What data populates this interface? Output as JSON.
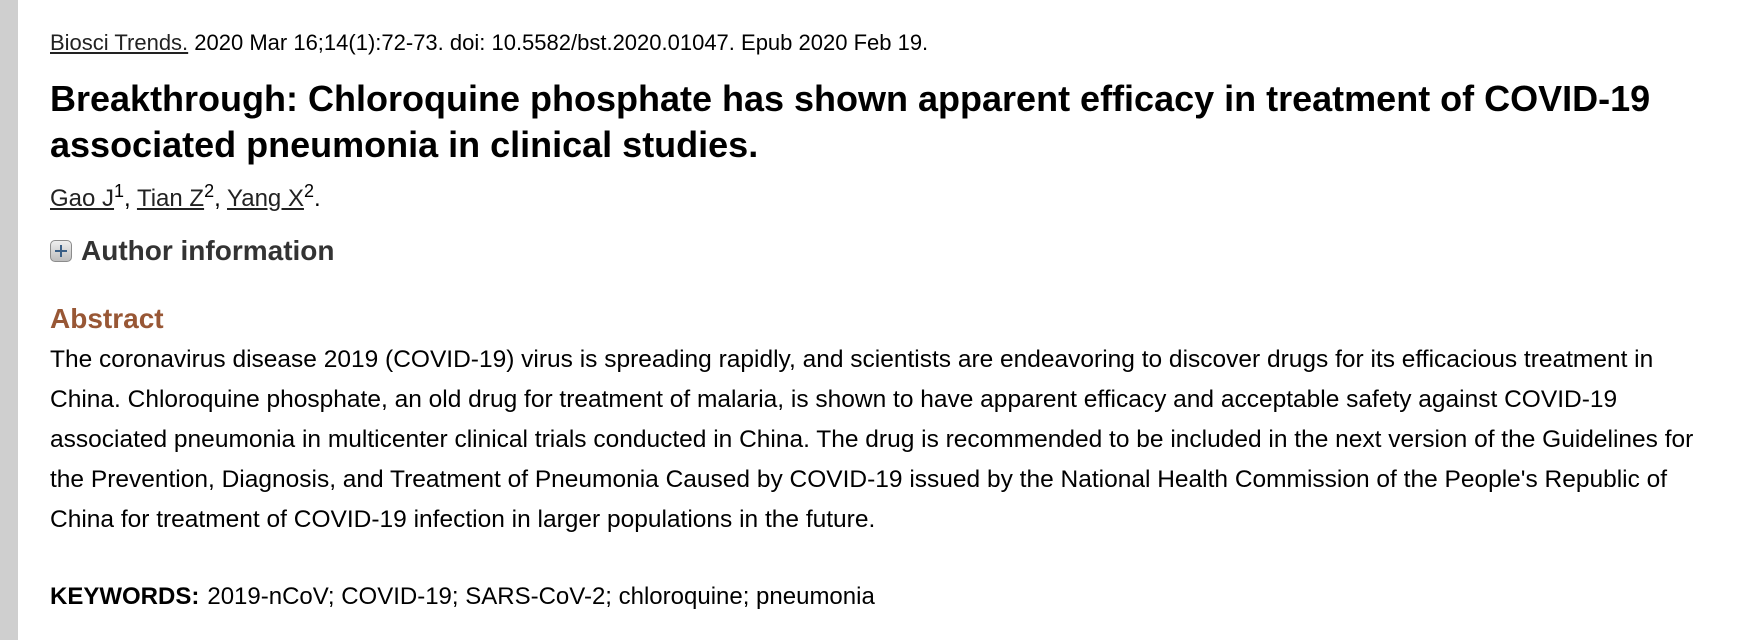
{
  "citation": {
    "journal": "Biosci Trends.",
    "details": " 2020 Mar 16;14(1):72-73. doi: 10.5582/bst.2020.01047. Epub 2020 Feb 19."
  },
  "title": "Breakthrough: Chloroquine phosphate has shown apparent efficacy in treatment of COVID-19 associated pneumonia in clinical studies.",
  "authors": [
    {
      "name": "Gao J",
      "affiliation": "1"
    },
    {
      "name": "Tian Z",
      "affiliation": "2"
    },
    {
      "name": "Yang X",
      "affiliation": "2"
    }
  ],
  "author_info": {
    "icon": "plus-expand-icon",
    "label": "Author information"
  },
  "abstract": {
    "heading": "Abstract",
    "text": "The coronavirus disease 2019 (COVID-19) virus is spreading rapidly, and scientists are endeavoring to discover drugs for its efficacious treatment in China. Chloroquine phosphate, an old drug for treatment of malaria, is shown to have apparent efficacy and acceptable safety against COVID-19 associated pneumonia in multicenter clinical trials conducted in China. The drug is recommended to be included in the next version of the Guidelines for the Prevention, Diagnosis, and Treatment of Pneumonia Caused by COVID-19 issued by the National Health Commission of the People's Republic of China for treatment of COVID-19 infection in larger populations in the future."
  },
  "keywords": {
    "label": "KEYWORDS:",
    "values": "2019-nCoV; COVID-19; SARS-CoV-2; chloroquine; pneumonia"
  },
  "colors": {
    "abstract_heading": "#985735",
    "left_bar": "#cfcfcf"
  }
}
